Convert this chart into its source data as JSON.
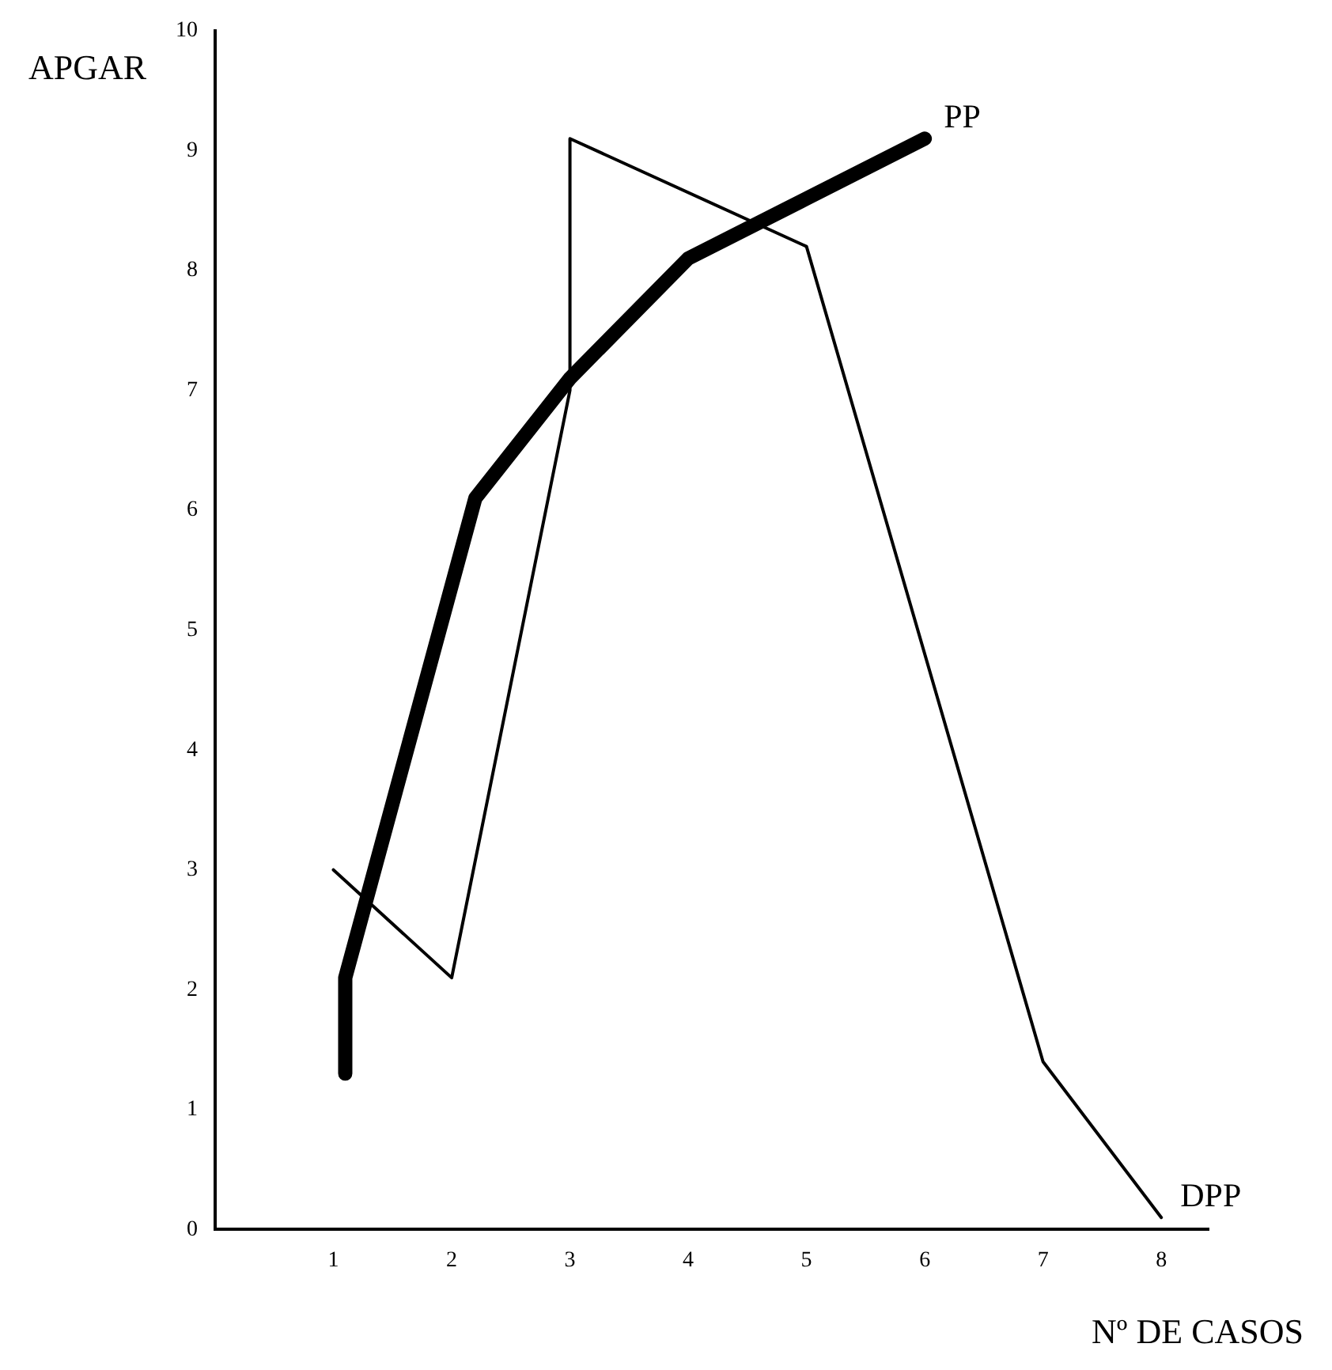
{
  "chart_data": {
    "type": "line",
    "xlabel": "Nº DE CASOS",
    "ylabel": "APGAR",
    "series": [
      {
        "name": "PP",
        "color": "#000000",
        "x": [
          1.1,
          1.1,
          2.2,
          3,
          4,
          5,
          6
        ],
        "values": [
          1.3,
          2.1,
          6.1,
          7.1,
          8.1,
          8.6,
          9.1
        ]
      },
      {
        "name": "DPP",
        "color": "#000000",
        "x": [
          1,
          2,
          3,
          3,
          5,
          7,
          8
        ],
        "values": [
          3,
          2.1,
          7,
          9.1,
          8.2,
          1.4,
          0.1
        ]
      }
    ],
    "xlim": [
      0,
      8.4
    ],
    "xticks": [
      1,
      2,
      3,
      4,
      5,
      6,
      7,
      8
    ],
    "ylim": [
      0,
      10
    ],
    "yticks": [
      0,
      1,
      2,
      3,
      4,
      5,
      6,
      7,
      8,
      9,
      10
    ],
    "grid": false,
    "legend": false,
    "marker": "none",
    "line_style": "solid"
  }
}
